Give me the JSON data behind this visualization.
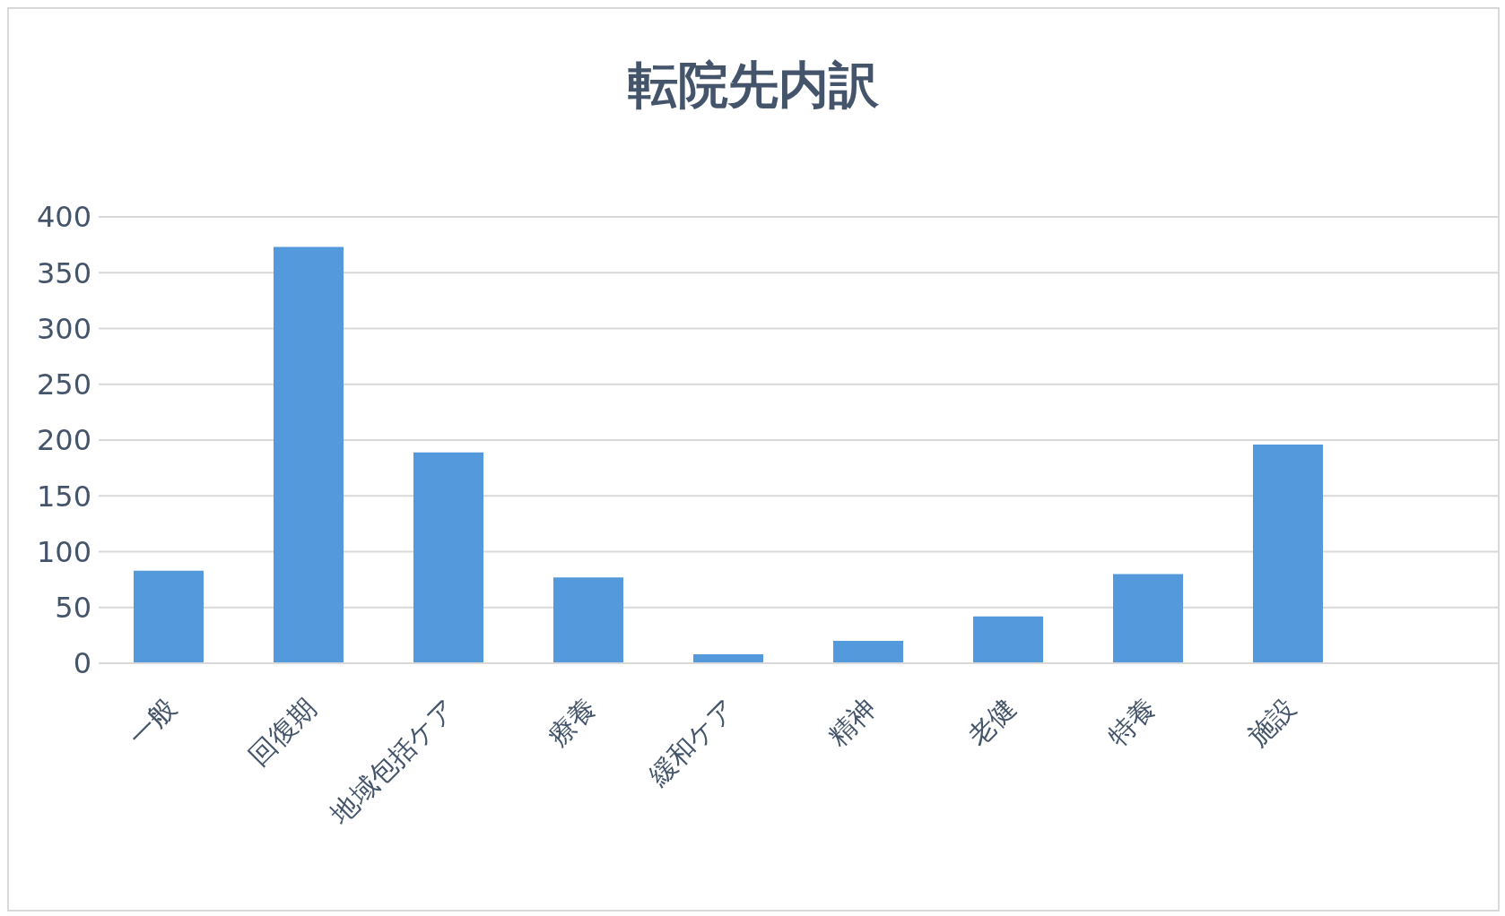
{
  "chart_data": {
    "type": "bar",
    "title": "転院先内訳",
    "categories": [
      "一般",
      "回復期",
      "地域包括ケア",
      "療養",
      "緩和ケア",
      "精神",
      "老健",
      "特養",
      "施設",
      null
    ],
    "values": [
      83,
      373,
      189,
      77,
      8,
      20,
      42,
      80,
      196,
      null
    ],
    "color": "#5599dd",
    "ylim": [
      0,
      400
    ],
    "yticks": [
      0,
      50,
      100,
      150,
      200,
      250,
      300,
      350,
      400
    ],
    "grid": "y"
  }
}
